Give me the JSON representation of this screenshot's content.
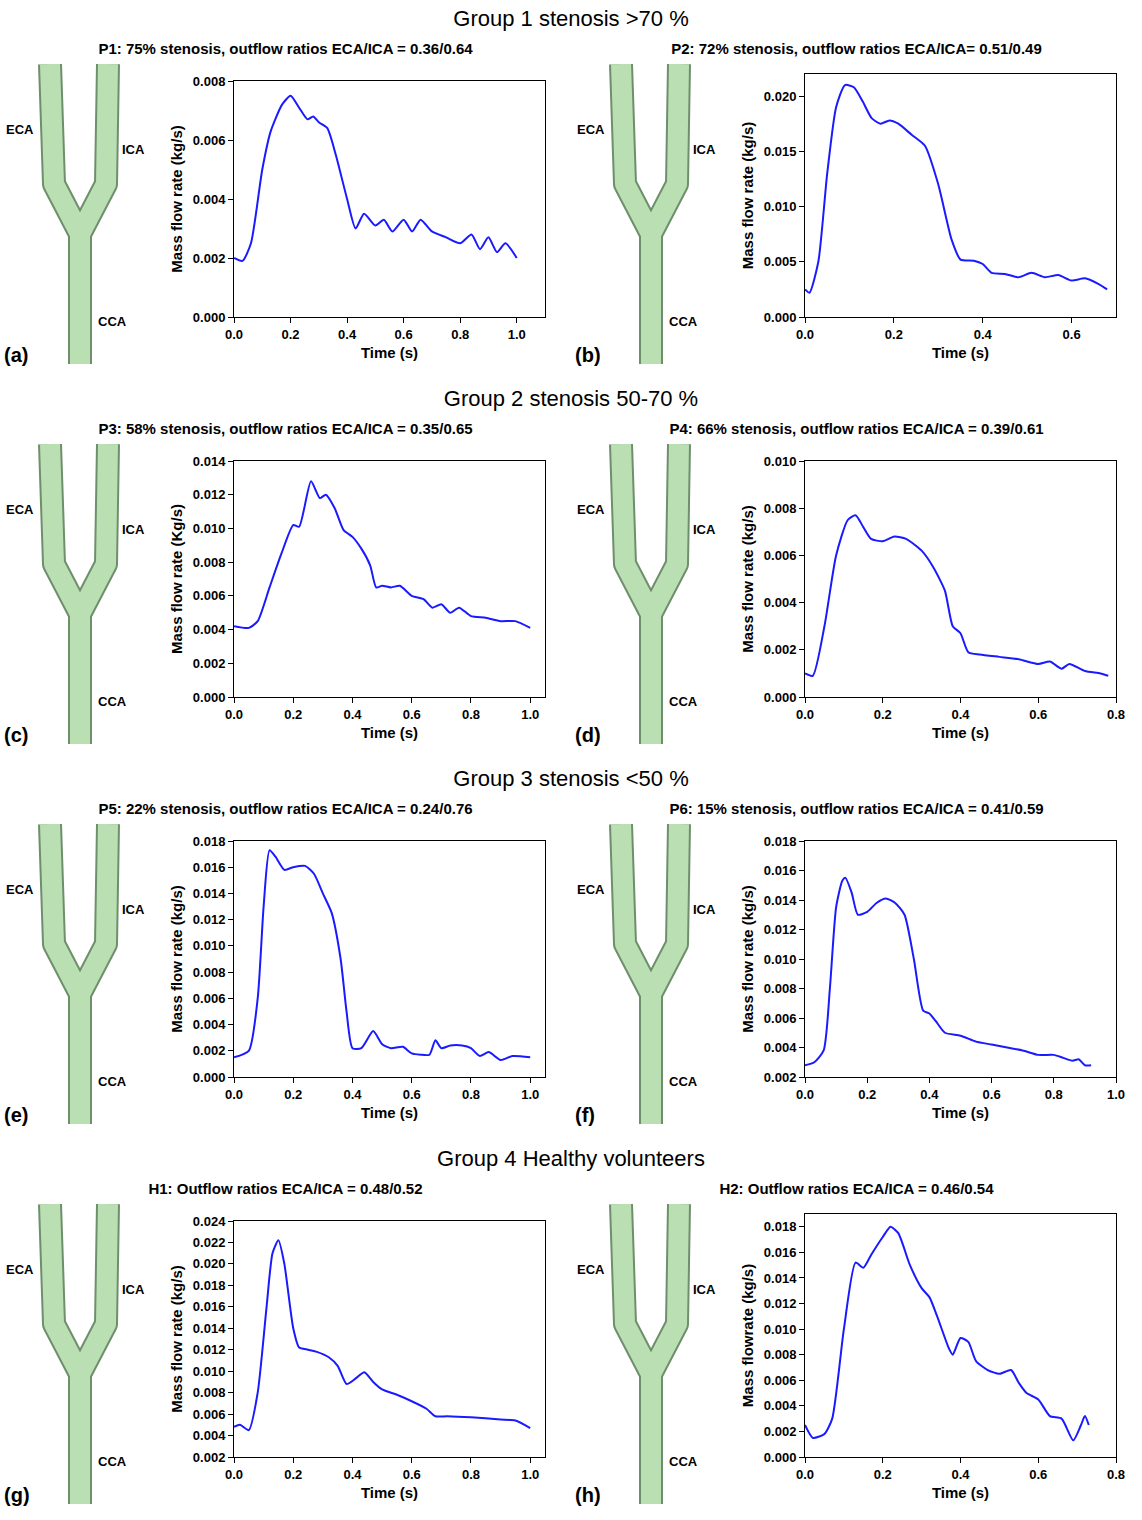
{
  "chart_data": [
    {
      "type": "line",
      "panel_label": "(a)",
      "title": "P1: 75% stenosis, outflow ratios ECA/ICA = 0.36/0.64",
      "vessel_labels": [
        "ECA",
        "ICA",
        "CCA"
      ],
      "xlabel": "Time (s)",
      "ylabel": "Mass flow rate (kg/s)",
      "color": "#1a1aff",
      "grid": false,
      "xlim": [
        0,
        1.1
      ],
      "xticks": [
        {
          "value": 0,
          "label": "0.0"
        },
        0.2,
        0.4,
        0.6,
        0.8,
        {
          "value": 1,
          "label": "1.0"
        }
      ],
      "ylim": [
        0,
        0.008
      ],
      "yticks": [
        {
          "value": 0,
          "label": "0.000"
        },
        0.002,
        0.004,
        0.006,
        0.008
      ],
      "x": [
        0,
        0.03,
        0.06,
        0.1,
        0.13,
        0.17,
        0.2,
        0.23,
        0.26,
        0.28,
        0.3,
        0.33,
        0.36,
        0.4,
        0.43,
        0.46,
        0.5,
        0.53,
        0.56,
        0.6,
        0.63,
        0.66,
        0.7,
        0.75,
        0.8,
        0.84,
        0.87,
        0.9,
        0.93,
        0.96,
        1.0
      ],
      "values": [
        0.002,
        0.0019,
        0.0025,
        0.005,
        0.0063,
        0.0072,
        0.0075,
        0.0071,
        0.0067,
        0.0068,
        0.0066,
        0.0064,
        0.0055,
        0.004,
        0.003,
        0.0035,
        0.0031,
        0.0033,
        0.0029,
        0.0033,
        0.0029,
        0.0033,
        0.0029,
        0.0027,
        0.0025,
        0.0028,
        0.0023,
        0.0027,
        0.0022,
        0.0025,
        0.002
      ]
    },
    {
      "type": "line",
      "panel_label": "(b)",
      "title": "P2: 72% stenosis, outflow ratios ECA/ICA= 0.51/0.49",
      "vessel_labels": [
        "ECA",
        "ICA",
        "CCA"
      ],
      "xlabel": "Time (s)",
      "ylabel": "Mass flow rate (kg/s)",
      "color": "#1a1aff",
      "grid": false,
      "xlim": [
        0,
        0.7
      ],
      "xticks": [
        {
          "value": 0,
          "label": "0.0"
        },
        0.2,
        0.4,
        0.6
      ],
      "ylim": [
        0,
        0.022
      ],
      "yticks": [
        {
          "value": 0,
          "label": "0.000"
        },
        0.005,
        {
          "value": 0.01,
          "label": "0.010"
        },
        0.015,
        {
          "value": 0.02,
          "label": "0.020"
        }
      ],
      "x": [
        0,
        0.01,
        0.03,
        0.05,
        0.07,
        0.09,
        0.11,
        0.13,
        0.15,
        0.17,
        0.19,
        0.21,
        0.24,
        0.27,
        0.3,
        0.33,
        0.35,
        0.38,
        0.4,
        0.42,
        0.45,
        0.48,
        0.51,
        0.54,
        0.57,
        0.6,
        0.63,
        0.66,
        0.68
      ],
      "values": [
        0.0025,
        0.0022,
        0.005,
        0.013,
        0.019,
        0.021,
        0.0208,
        0.0195,
        0.018,
        0.0175,
        0.0178,
        0.0175,
        0.0165,
        0.0155,
        0.012,
        0.007,
        0.0052,
        0.0051,
        0.0048,
        0.004,
        0.0039,
        0.0036,
        0.004,
        0.0036,
        0.0038,
        0.0033,
        0.0035,
        0.003,
        0.0025
      ]
    },
    {
      "type": "line",
      "panel_label": "(c)",
      "title": "P3: 58% stenosis, outflow ratios ECA/ICA = 0.35/0.65",
      "vessel_labels": [
        "ECA",
        "ICA",
        "CCA"
      ],
      "xlabel": "Time (s)",
      "ylabel": "Mass flow rate (Kg/s)",
      "color": "#1a1aff",
      "grid": false,
      "xlim": [
        0,
        1.05
      ],
      "xticks": [
        {
          "value": 0,
          "label": "0.0"
        },
        0.2,
        0.4,
        0.6,
        0.8,
        {
          "value": 1,
          "label": "1.0"
        }
      ],
      "ylim": [
        0,
        0.014
      ],
      "yticks": [
        {
          "value": 0,
          "label": "0.000"
        },
        0.002,
        0.004,
        0.006,
        0.008,
        {
          "value": 0.01,
          "label": "0.010"
        },
        0.012,
        0.014
      ],
      "x": [
        0,
        0.05,
        0.08,
        0.12,
        0.16,
        0.2,
        0.22,
        0.26,
        0.29,
        0.31,
        0.34,
        0.37,
        0.4,
        0.43,
        0.46,
        0.48,
        0.5,
        0.53,
        0.56,
        0.6,
        0.64,
        0.67,
        0.7,
        0.73,
        0.76,
        0.8,
        0.85,
        0.9,
        0.95,
        1.0
      ],
      "values": [
        0.0042,
        0.0041,
        0.0045,
        0.0065,
        0.0085,
        0.0102,
        0.0101,
        0.0128,
        0.0118,
        0.012,
        0.0112,
        0.0099,
        0.0095,
        0.0088,
        0.0078,
        0.0065,
        0.0066,
        0.0065,
        0.0066,
        0.006,
        0.0058,
        0.0053,
        0.0055,
        0.005,
        0.0053,
        0.0048,
        0.0047,
        0.0045,
        0.0045,
        0.0041
      ]
    },
    {
      "type": "line",
      "panel_label": "(d)",
      "title": "P4: 66% stenosis, outflow ratios ECA/ICA = 0.39/0.61",
      "vessel_labels": [
        "ECA",
        "ICA",
        "CCA"
      ],
      "xlabel": "Time (s)",
      "ylabel": "Mass flow rate (kg/s)",
      "color": "#1a1aff",
      "grid": false,
      "xlim": [
        0,
        0.8
      ],
      "xticks": [
        {
          "value": 0,
          "label": "0.0"
        },
        0.2,
        0.4,
        0.6,
        0.8
      ],
      "ylim": [
        0,
        0.01
      ],
      "yticks": [
        {
          "value": 0,
          "label": "0.000"
        },
        0.002,
        0.004,
        0.006,
        0.008,
        {
          "value": 0.01,
          "label": "0.010"
        }
      ],
      "x": [
        0,
        0.02,
        0.05,
        0.08,
        0.11,
        0.13,
        0.15,
        0.17,
        0.2,
        0.23,
        0.26,
        0.3,
        0.33,
        0.36,
        0.38,
        0.4,
        0.42,
        0.45,
        0.5,
        0.55,
        0.6,
        0.63,
        0.66,
        0.68,
        0.72,
        0.76,
        0.78
      ],
      "values": [
        0.001,
        0.0009,
        0.003,
        0.006,
        0.0075,
        0.0077,
        0.0072,
        0.0067,
        0.0066,
        0.0068,
        0.0067,
        0.0062,
        0.0055,
        0.0045,
        0.003,
        0.0027,
        0.0019,
        0.0018,
        0.0017,
        0.0016,
        0.0014,
        0.0015,
        0.0012,
        0.0014,
        0.0011,
        0.001,
        0.0009
      ]
    },
    {
      "type": "line",
      "panel_label": "(e)",
      "title": "P5: 22% stenosis, outflow ratios ECA/ICA = 0.24/0.76",
      "vessel_labels": [
        "ECA",
        "ICA",
        "CCA"
      ],
      "xlabel": "Time (s)",
      "ylabel": "Mass flow rate (kg/s)",
      "color": "#1a1aff",
      "grid": false,
      "xlim": [
        0,
        1.05
      ],
      "xticks": [
        {
          "value": 0,
          "label": "0.0"
        },
        0.2,
        0.4,
        0.6,
        0.8,
        {
          "value": 1,
          "label": "1.0"
        }
      ],
      "ylim": [
        0,
        0.018
      ],
      "yticks": [
        {
          "value": 0,
          "label": "0.000"
        },
        0.002,
        0.004,
        0.006,
        0.008,
        {
          "value": 0.01,
          "label": "0.010"
        },
        0.012,
        0.014,
        0.016,
        0.018
      ],
      "x": [
        0,
        0.05,
        0.08,
        0.1,
        0.12,
        0.14,
        0.17,
        0.2,
        0.24,
        0.27,
        0.3,
        0.33,
        0.36,
        0.38,
        0.4,
        0.43,
        0.47,
        0.5,
        0.53,
        0.57,
        0.6,
        0.63,
        0.66,
        0.68,
        0.7,
        0.73,
        0.77,
        0.8,
        0.83,
        0.86,
        0.9,
        0.94,
        1.0
      ],
      "values": [
        0.0015,
        0.002,
        0.006,
        0.013,
        0.0173,
        0.0168,
        0.0158,
        0.016,
        0.0161,
        0.0155,
        0.014,
        0.0125,
        0.009,
        0.005,
        0.0022,
        0.0022,
        0.0035,
        0.0025,
        0.0022,
        0.0023,
        0.0018,
        0.0017,
        0.0017,
        0.0028,
        0.0022,
        0.0024,
        0.0024,
        0.0022,
        0.0016,
        0.0019,
        0.0013,
        0.0016,
        0.0015
      ]
    },
    {
      "type": "line",
      "panel_label": "(f)",
      "title": "P6: 15% stenosis, outflow ratios ECA/ICA =  0.41/0.59",
      "vessel_labels": [
        "ECA",
        "ICA",
        "CCA"
      ],
      "xlabel": "Time (s)",
      "ylabel": "Mass flow rate (kg/s)",
      "color": "#1a1aff",
      "grid": false,
      "xlim": [
        0,
        1.0
      ],
      "xticks": [
        {
          "value": 0,
          "label": "0.0"
        },
        0.2,
        0.4,
        0.6,
        0.8,
        {
          "value": 1,
          "label": "1.0"
        }
      ],
      "ylim": [
        0.002,
        0.018
      ],
      "yticks": [
        0.002,
        0.004,
        0.006,
        0.008,
        {
          "value": 0.01,
          "label": "0.010"
        },
        0.012,
        0.014,
        0.016,
        0.018
      ],
      "x": [
        0,
        0.03,
        0.06,
        0.08,
        0.1,
        0.12,
        0.13,
        0.15,
        0.17,
        0.2,
        0.23,
        0.26,
        0.29,
        0.32,
        0.35,
        0.38,
        0.4,
        0.42,
        0.45,
        0.5,
        0.55,
        0.6,
        0.65,
        0.7,
        0.75,
        0.8,
        0.83,
        0.86,
        0.88,
        0.9,
        0.92
      ],
      "values": [
        0.0028,
        0.003,
        0.0038,
        0.008,
        0.0135,
        0.0153,
        0.0155,
        0.0145,
        0.013,
        0.0132,
        0.0138,
        0.0141,
        0.0138,
        0.013,
        0.01,
        0.0065,
        0.0063,
        0.0058,
        0.005,
        0.0048,
        0.0044,
        0.0042,
        0.004,
        0.0038,
        0.0035,
        0.0035,
        0.0033,
        0.0031,
        0.0032,
        0.0028,
        0.0028
      ]
    },
    {
      "type": "line",
      "panel_label": "(g)",
      "title": "H1: Outflow ratios ECA/ICA = 0.48/0.52",
      "vessel_labels": [
        "ECA",
        "ICA",
        "CCA"
      ],
      "xlabel": "Time (s)",
      "ylabel": "Mass flow rate (kg/s)",
      "color": "#1a1aff",
      "grid": false,
      "xlim": [
        0,
        1.05
      ],
      "xticks": [
        {
          "value": 0,
          "label": "0.0"
        },
        0.2,
        0.4,
        0.6,
        0.8,
        {
          "value": 1,
          "label": "1.0"
        }
      ],
      "ylim": [
        0.002,
        0.024
      ],
      "yticks": [
        0.002,
        0.004,
        0.006,
        0.008,
        {
          "value": 0.01,
          "label": "0.010"
        },
        0.012,
        0.014,
        0.016,
        0.018,
        {
          "value": 0.02,
          "label": "0.020"
        },
        0.022,
        0.024
      ],
      "x": [
        0,
        0.02,
        0.05,
        0.08,
        0.11,
        0.13,
        0.15,
        0.17,
        0.2,
        0.22,
        0.25,
        0.28,
        0.32,
        0.35,
        0.38,
        0.41,
        0.44,
        0.47,
        0.5,
        0.55,
        0.6,
        0.65,
        0.68,
        0.72,
        0.8,
        0.9,
        0.95,
        1.0
      ],
      "values": [
        0.0048,
        0.005,
        0.0045,
        0.008,
        0.016,
        0.021,
        0.0222,
        0.02,
        0.014,
        0.0122,
        0.012,
        0.0118,
        0.0113,
        0.0105,
        0.0088,
        0.0093,
        0.0099,
        0.009,
        0.0083,
        0.0078,
        0.0072,
        0.0065,
        0.0058,
        0.0058,
        0.0057,
        0.0055,
        0.0054,
        0.0047
      ]
    },
    {
      "type": "line",
      "panel_label": "(h)",
      "title": "H2: Outflow ratios ECA/ICA = 0.46/0.54",
      "vessel_labels": [
        "ECA",
        "ICA",
        "CCA"
      ],
      "xlabel": "Time (s)",
      "ylabel": "Mass flowrate (kg/s)",
      "color": "#1a1aff",
      "grid": false,
      "xlim": [
        0,
        0.8
      ],
      "xticks": [
        {
          "value": 0,
          "label": "0.0"
        },
        0.2,
        0.4,
        0.6,
        0.8
      ],
      "ylim": [
        0,
        0.019
      ],
      "yticks": [
        {
          "value": 0,
          "label": "0.000"
        },
        0.002,
        0.004,
        0.006,
        0.008,
        {
          "value": 0.01,
          "label": "0.010"
        },
        0.012,
        0.014,
        0.016,
        0.018
      ],
      "x": [
        0,
        0.02,
        0.05,
        0.07,
        0.1,
        0.13,
        0.15,
        0.17,
        0.2,
        0.22,
        0.24,
        0.27,
        0.3,
        0.32,
        0.34,
        0.37,
        0.38,
        0.4,
        0.42,
        0.44,
        0.47,
        0.5,
        0.53,
        0.55,
        0.57,
        0.6,
        0.63,
        0.66,
        0.69,
        0.71,
        0.72,
        0.73
      ],
      "values": [
        0.0025,
        0.0015,
        0.0018,
        0.003,
        0.01,
        0.0152,
        0.0148,
        0.0158,
        0.0172,
        0.018,
        0.0175,
        0.015,
        0.0132,
        0.0125,
        0.011,
        0.0085,
        0.008,
        0.0093,
        0.009,
        0.0075,
        0.0068,
        0.0065,
        0.0068,
        0.0058,
        0.005,
        0.0045,
        0.0032,
        0.003,
        0.0013,
        0.0025,
        0.0032,
        0.0025
      ]
    }
  ],
  "group_titles": [
    "Group 1 stenosis >70 %",
    "Group 2 stenosis 50-70 %",
    "Group 3 stenosis <50 %",
    "Group 4 Healthy volunteers"
  ]
}
